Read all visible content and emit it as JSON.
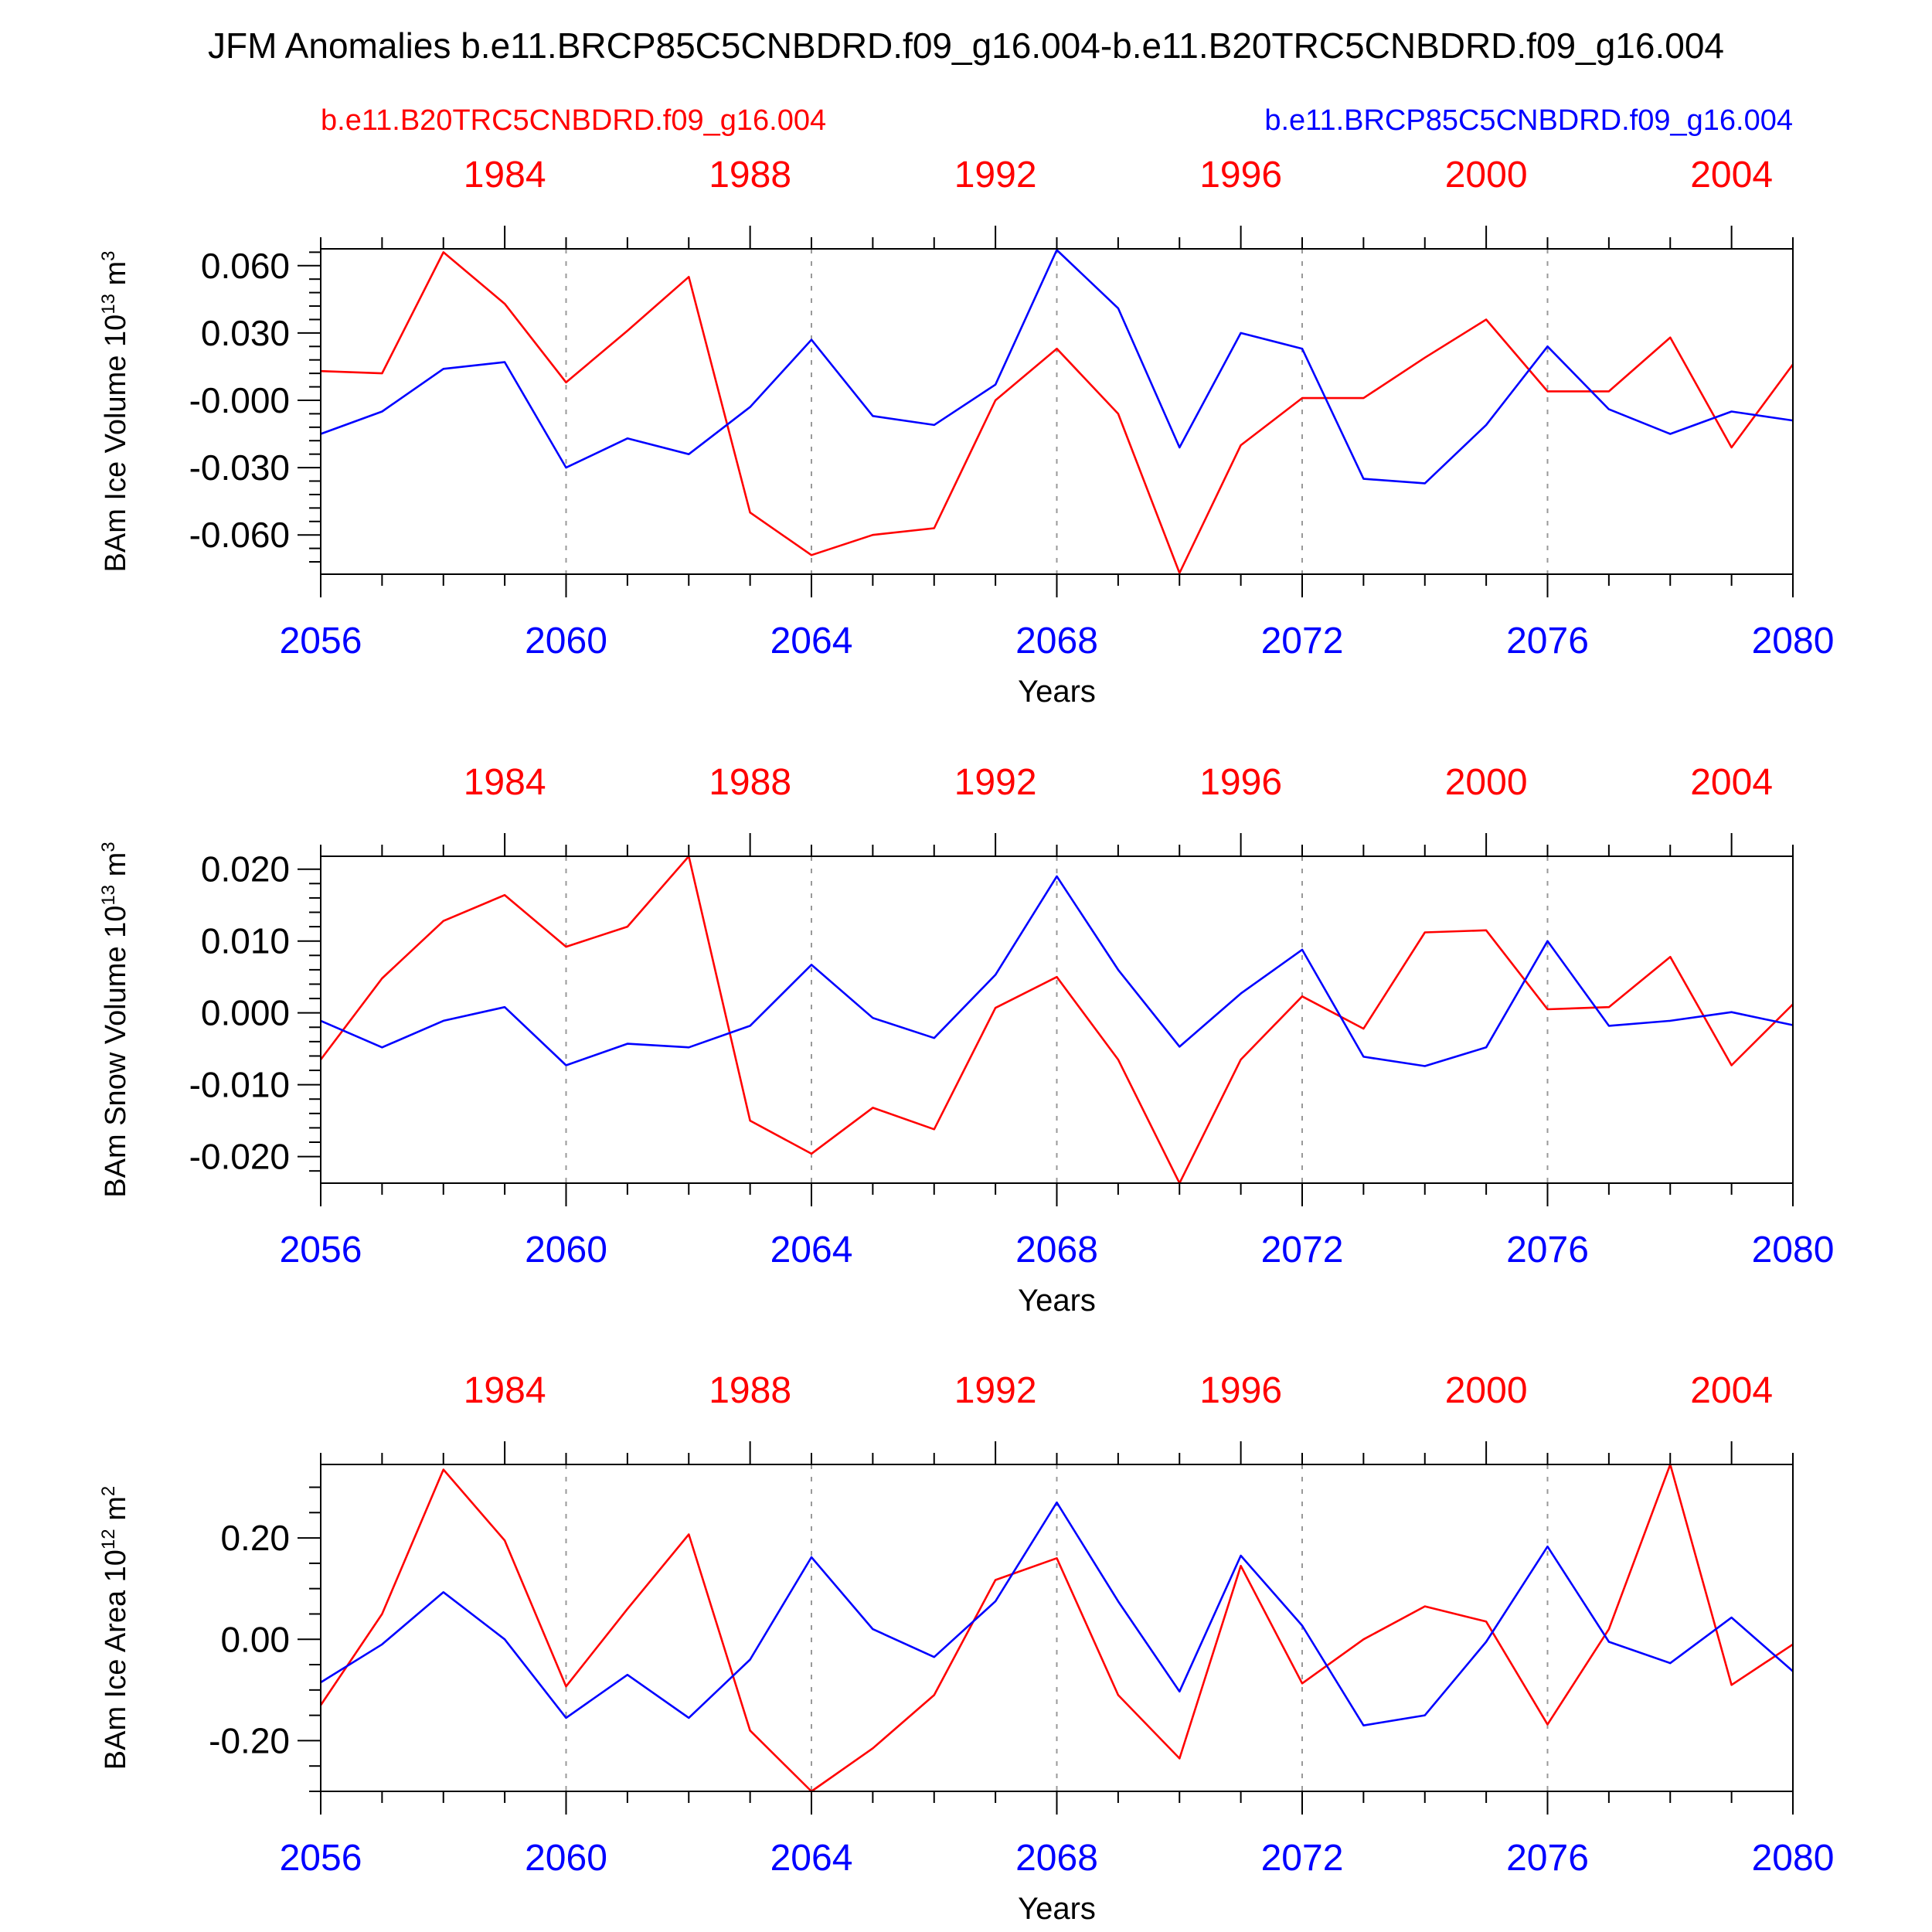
{
  "title": "JFM Anomalies b.e11.BRCP85C5CNBDRD.f09_g16.004-b.e11.B20TRC5CNBDRD.f09_g16.004",
  "legend": {
    "red_label": "b.e11.B20TRC5CNBDRD.f09_g16.004",
    "blue_label": "b.e11.BRCP85C5CNBDRD.f09_g16.004"
  },
  "colors": {
    "red": "#ff0000",
    "blue": "#0000ff",
    "axis": "#000000",
    "grid": "#999999"
  },
  "chart_data": [
    {
      "type": "line",
      "title": "",
      "xlabel": "Years",
      "ylabel": "BAm Ice Volume 10",
      "ylabel_exp": "13",
      "ylabel_unit": " m",
      "ylabel_unit_exp": "3",
      "x": [
        2056,
        2057,
        2058,
        2059,
        2060,
        2061,
        2062,
        2063,
        2064,
        2065,
        2066,
        2067,
        2068,
        2069,
        2070,
        2071,
        2072,
        2073,
        2074,
        2075,
        2076,
        2077,
        2078,
        2079,
        2080
      ],
      "xlim": [
        2056,
        2080
      ],
      "ylim": [
        -0.0775,
        0.0675
      ],
      "yticks": [
        0.06,
        0.03,
        0.0,
        -0.03,
        -0.06
      ],
      "ytick_labels": [
        "0.060",
        "0.030",
        "-0.000",
        "-0.030",
        "-0.060"
      ],
      "yminor_step": 0.006,
      "bottom_ticks": [
        2056,
        2060,
        2064,
        2068,
        2072,
        2076,
        2080
      ],
      "bottom_tick_labels": [
        "2056",
        "2060",
        "2064",
        "2068",
        "2072",
        "2076",
        "2080"
      ],
      "top_ticks": [
        2059,
        2063,
        2067,
        2071,
        2075,
        2079
      ],
      "top_tick_labels": [
        "1984",
        "1988",
        "1992",
        "1996",
        "2000",
        "2004"
      ],
      "series": [
        {
          "name": "b.e11.B20TRC5CNBDRD.f09_g16.004",
          "color": "red",
          "values": [
            0.013,
            0.012,
            0.066,
            0.043,
            0.008,
            0.031,
            0.055,
            -0.05,
            -0.069,
            -0.06,
            -0.057,
            0.0,
            0.023,
            -0.006,
            -0.077,
            -0.02,
            0.001,
            0.001,
            0.019,
            0.036,
            0.004,
            0.004,
            0.028,
            -0.021,
            0.016
          ]
        },
        {
          "name": "b.e11.BRCP85C5CNBDRD.f09_g16.004",
          "color": "blue",
          "values": [
            -0.015,
            -0.005,
            0.014,
            0.017,
            -0.03,
            -0.017,
            -0.024,
            -0.003,
            0.027,
            -0.007,
            -0.011,
            0.007,
            0.067,
            0.041,
            -0.021,
            0.03,
            0.023,
            -0.035,
            -0.037,
            -0.011,
            0.024,
            -0.004,
            -0.015,
            -0.005,
            -0.009
          ]
        }
      ]
    },
    {
      "type": "line",
      "title": "",
      "xlabel": "Years",
      "ylabel": "BAm Snow Volume 10",
      "ylabel_exp": "13",
      "ylabel_unit": " m",
      "ylabel_unit_exp": "3",
      "x": [
        2056,
        2057,
        2058,
        2059,
        2060,
        2061,
        2062,
        2063,
        2064,
        2065,
        2066,
        2067,
        2068,
        2069,
        2070,
        2071,
        2072,
        2073,
        2074,
        2075,
        2076,
        2077,
        2078,
        2079,
        2080
      ],
      "xlim": [
        2056,
        2080
      ],
      "ylim": [
        -0.0237,
        0.0218
      ],
      "yticks": [
        0.02,
        0.01,
        0.0,
        -0.01,
        -0.02
      ],
      "ytick_labels": [
        "0.020",
        "0.010",
        "0.000",
        "-0.010",
        "-0.020"
      ],
      "yminor_step": 0.002,
      "bottom_ticks": [
        2056,
        2060,
        2064,
        2068,
        2072,
        2076,
        2080
      ],
      "bottom_tick_labels": [
        "2056",
        "2060",
        "2064",
        "2068",
        "2072",
        "2076",
        "2080"
      ],
      "top_ticks": [
        2059,
        2063,
        2067,
        2071,
        2075,
        2079
      ],
      "top_tick_labels": [
        "1984",
        "1988",
        "1992",
        "1996",
        "2000",
        "2004"
      ],
      "series": [
        {
          "name": "b.e11.B20TRC5CNBDRD.f09_g16.004",
          "color": "red",
          "values": [
            -0.0065,
            0.0048,
            0.0128,
            0.0164,
            0.0092,
            0.012,
            0.0218,
            -0.015,
            -0.0196,
            -0.0132,
            -0.0162,
            0.0007,
            0.005,
            -0.0065,
            -0.0237,
            -0.0065,
            0.0023,
            -0.0022,
            0.0112,
            0.0115,
            0.0005,
            0.0008,
            0.0078,
            -0.0073,
            0.0012
          ]
        },
        {
          "name": "b.e11.BRCP85C5CNBDRD.f09_g16.004",
          "color": "blue",
          "values": [
            -0.0011,
            -0.0048,
            -0.0011,
            0.0008,
            -0.0073,
            -0.0043,
            -0.0048,
            -0.0018,
            0.0067,
            -0.0007,
            -0.0035,
            0.0053,
            0.019,
            0.006,
            -0.0047,
            0.0027,
            0.0088,
            -0.0061,
            -0.0074,
            -0.0048,
            0.01,
            -0.0018,
            -0.0011,
            0.0001,
            -0.0017
          ]
        }
      ]
    },
    {
      "type": "line",
      "title": "",
      "xlabel": "Years",
      "ylabel": "BAm Ice Area 10",
      "ylabel_exp": "12",
      "ylabel_unit": " m",
      "ylabel_unit_exp": "2",
      "x": [
        2056,
        2057,
        2058,
        2059,
        2060,
        2061,
        2062,
        2063,
        2064,
        2065,
        2066,
        2067,
        2068,
        2069,
        2070,
        2071,
        2072,
        2073,
        2074,
        2075,
        2076,
        2077,
        2078,
        2079,
        2080
      ],
      "xlim": [
        2056,
        2080
      ],
      "ylim": [
        -0.3,
        0.345
      ],
      "yticks": [
        0.2,
        0.0,
        -0.2
      ],
      "ytick_labels": [
        "0.20",
        "0.00",
        "-0.20"
      ],
      "yminor_step": 0.05,
      "bottom_ticks": [
        2056,
        2060,
        2064,
        2068,
        2072,
        2076,
        2080
      ],
      "bottom_tick_labels": [
        "2056",
        "2060",
        "2064",
        "2068",
        "2072",
        "2076",
        "2080"
      ],
      "top_ticks": [
        2059,
        2063,
        2067,
        2071,
        2075,
        2079
      ],
      "top_tick_labels": [
        "1984",
        "1988",
        "1992",
        "1996",
        "2000",
        "2004"
      ],
      "series": [
        {
          "name": "b.e11.B20TRC5CNBDRD.f09_g16.004",
          "color": "red",
          "values": [
            -0.13,
            0.05,
            0.335,
            0.195,
            -0.093,
            0.06,
            0.207,
            -0.18,
            -0.3,
            -0.215,
            -0.11,
            0.117,
            0.16,
            -0.11,
            -0.235,
            0.145,
            -0.087,
            0.0,
            0.065,
            0.035,
            -0.168,
            0.02,
            0.345,
            -0.09,
            -0.01
          ]
        },
        {
          "name": "b.e11.BRCP85C5CNBDRD.f09_g16.004",
          "color": "blue",
          "values": [
            -0.085,
            -0.01,
            0.093,
            0.0,
            -0.155,
            -0.07,
            -0.155,
            -0.04,
            0.162,
            0.02,
            -0.035,
            0.075,
            0.27,
            0.075,
            -0.103,
            0.165,
            0.027,
            -0.17,
            -0.15,
            -0.005,
            0.183,
            -0.005,
            -0.047,
            0.043,
            -0.063
          ]
        }
      ]
    }
  ]
}
